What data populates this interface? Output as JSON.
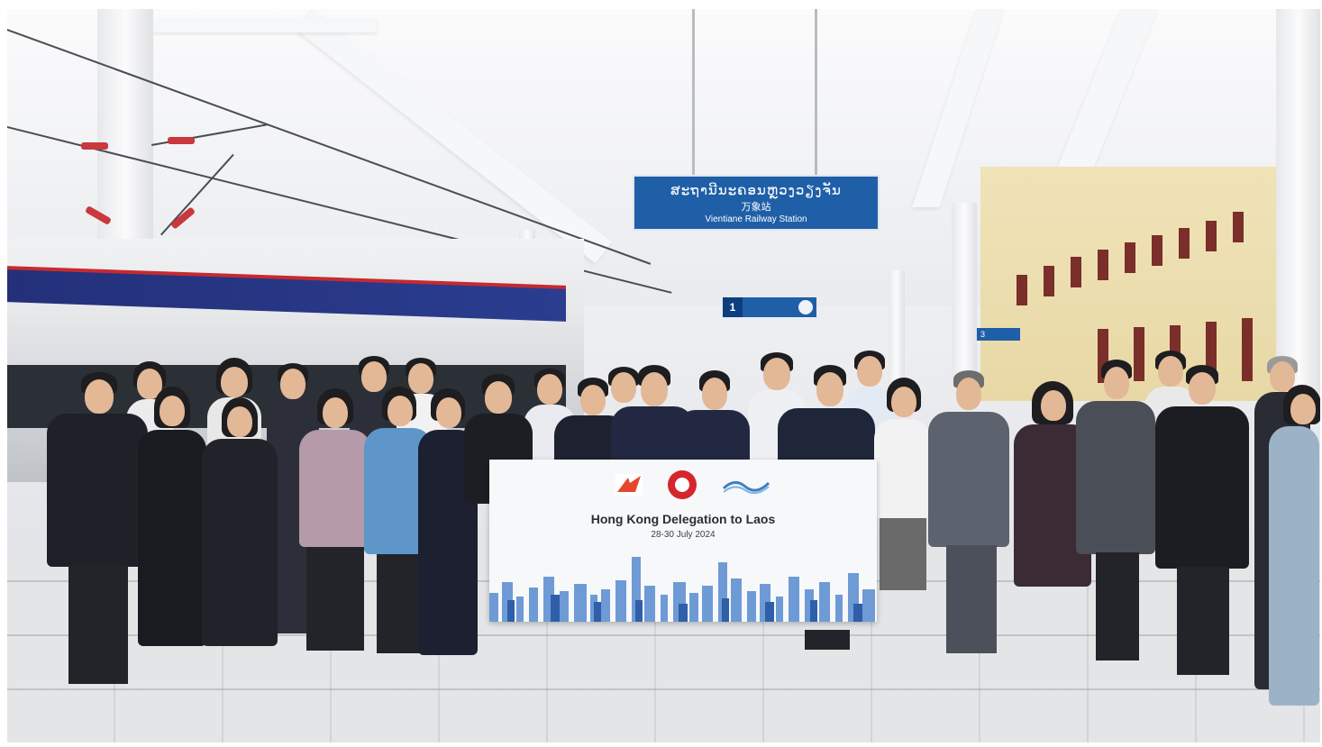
{
  "photo": {
    "description_free": true
  },
  "station_sign": {
    "lao_text": "ສະຖານີນະຄອນຫຼວງວຽງຈັນ",
    "chinese_text": "万象站",
    "english_text": "Vientiane Railway Station"
  },
  "platform_sign": {
    "number": "1"
  },
  "platform_sign_far": {
    "number": "3"
  },
  "banner": {
    "title": "Hong Kong Delegation to Laos",
    "dates": "28-30 July 2024",
    "logo_left": "HKTDC",
    "colors": {
      "skyline": "#4a7fc8",
      "sign_blue": "#1f5fa8",
      "train_stripe": "#24307a",
      "train_red": "#c62a30"
    }
  }
}
